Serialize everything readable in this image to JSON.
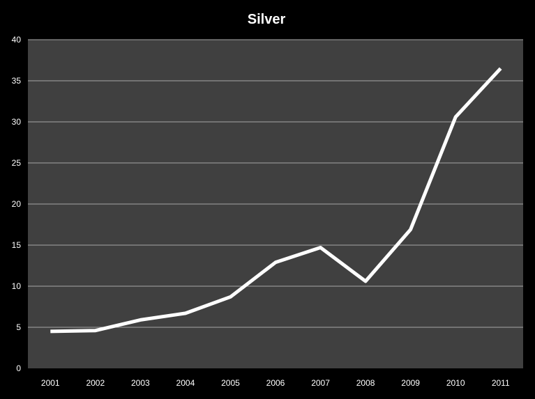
{
  "chart_data": {
    "type": "line",
    "title": "Silver",
    "xlabel": "",
    "ylabel": "",
    "categories": [
      "2001",
      "2002",
      "2003",
      "2004",
      "2005",
      "2006",
      "2007",
      "2008",
      "2009",
      "2010",
      "2011"
    ],
    "series": [
      {
        "values": [
          4.5,
          4.6,
          5.9,
          6.7,
          8.7,
          12.9,
          14.7,
          10.6,
          16.9,
          30.6,
          36.5
        ],
        "color": "#ffffff"
      }
    ],
    "ylim": [
      0,
      40
    ],
    "yticks": [
      0,
      5,
      10,
      15,
      20,
      25,
      30,
      35,
      40
    ],
    "grid": true,
    "legend": "none",
    "colors": {
      "background": "#000000",
      "plot_area": "#404040",
      "gridline": "#a6a6a6",
      "line": "#ffffff",
      "text": "#ffffff"
    }
  }
}
